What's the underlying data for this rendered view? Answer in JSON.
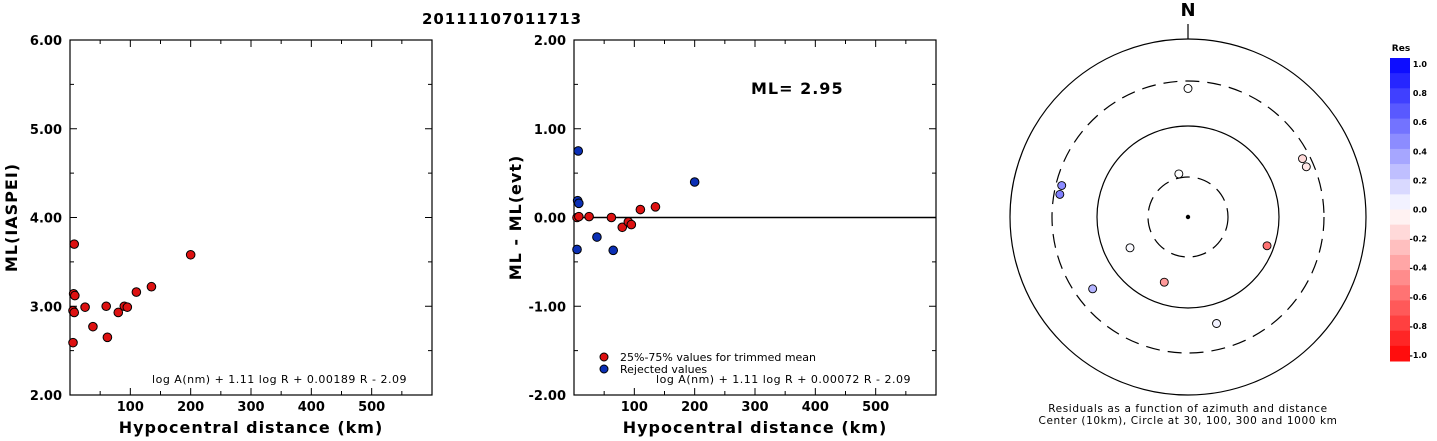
{
  "title": "20111107011713",
  "colors": {
    "accepted": "#dd1111",
    "rejected": "#0b2fb5",
    "axis": "#000000"
  },
  "chart_data": [
    {
      "type": "scatter",
      "xlabel": "Hypocentral distance (km)",
      "ylabel": "ML(IASPEI)",
      "xlim": [
        0,
        600
      ],
      "ylim": [
        2.0,
        6.0
      ],
      "xticks": [
        "100",
        "200",
        "300",
        "400",
        "500"
      ],
      "yticks": [
        "2.00",
        "3.00",
        "4.00",
        "5.00",
        "6.00"
      ],
      "formula": "log A(nm) + 1.11 log R + 0.00189 R - 2.09",
      "series": [
        {
          "color": "#dd1111",
          "points": [
            [
              7,
              3.7
            ],
            [
              6,
              3.14
            ],
            [
              8,
              3.12
            ],
            [
              5,
              2.95
            ],
            [
              7,
              2.93
            ],
            [
              5,
              2.59
            ],
            [
              25,
              2.99
            ],
            [
              38,
              2.77
            ],
            [
              60,
              3.0
            ],
            [
              62,
              2.65
            ],
            [
              80,
              2.93
            ],
            [
              90,
              3.0
            ],
            [
              95,
              2.99
            ],
            [
              110,
              3.16
            ],
            [
              135,
              3.22
            ],
            [
              200,
              3.58
            ]
          ]
        }
      ]
    },
    {
      "type": "scatter",
      "xlabel": "Hypocentral distance (km)",
      "ylabel": "ML - ML(evt)",
      "xlim": [
        0,
        600
      ],
      "ylim": [
        -2.0,
        2.0
      ],
      "xticks": [
        "100",
        "200",
        "300",
        "400",
        "500"
      ],
      "yticks": [
        "-2.00",
        "-1.00",
        "0.00",
        "1.00",
        "2.00"
      ],
      "annotation": "ML= 2.95",
      "formula": "log A(nm) + 1.11 log R + 0.00072 R - 2.09",
      "legend": {
        "accepted": "25%-75% values for trimmed mean",
        "rejected": "Rejected values"
      },
      "series": [
        {
          "color": "#dd1111",
          "points": [
            [
              5,
              0.0
            ],
            [
              8,
              0.01
            ],
            [
              25,
              0.01
            ],
            [
              62,
              0.0
            ],
            [
              80,
              -0.11
            ],
            [
              90,
              -0.05
            ],
            [
              95,
              -0.08
            ],
            [
              110,
              0.09
            ],
            [
              135,
              0.12
            ]
          ]
        },
        {
          "color": "#0b2fb5",
          "points": [
            [
              7,
              0.75
            ],
            [
              6,
              0.19
            ],
            [
              8,
              0.16
            ],
            [
              5,
              -0.36
            ],
            [
              38,
              -0.22
            ],
            [
              65,
              -0.37
            ],
            [
              200,
              0.4
            ]
          ]
        }
      ]
    },
    {
      "type": "polar",
      "north_label": "N",
      "colorbar": {
        "title": "Res",
        "ticks": [
          "1.0",
          "0.8",
          "0.6",
          "0.4",
          "0.2",
          "0.0",
          "-0.2",
          "-0.4",
          "-0.6",
          "-0.8",
          "-1.0"
        ],
        "range": [
          -1.0,
          1.0
        ]
      },
      "caption_line1": "Residuals as a function of azimuth and distance",
      "caption_line2": "Center (10km), Circle at 30, 100, 300 and 1000 km",
      "points": [
        {
          "azimuth": 0,
          "distance_km": 250,
          "residual": 0.0
        },
        {
          "azimuth": 63,
          "distance_km": 250,
          "residual": -0.15
        },
        {
          "azimuth": 67,
          "distance_km": 250,
          "residual": -0.1
        },
        {
          "azimuth": 348,
          "distance_km": 33,
          "residual": 0.0
        },
        {
          "azimuth": 242,
          "distance_km": 55,
          "residual": 0.02
        },
        {
          "azimuth": 280,
          "distance_km": 260,
          "residual": 0.5
        },
        {
          "azimuth": 284,
          "distance_km": 260,
          "residual": 0.45
        },
        {
          "azimuth": 233,
          "distance_km": 200,
          "residual": 0.3
        },
        {
          "azimuth": 165,
          "distance_km": 160,
          "residual": 0.05
        },
        {
          "azimuth": 200,
          "distance_km": 60,
          "residual": -0.4
        },
        {
          "azimuth": 110,
          "distance_km": 85,
          "residual": -0.55
        }
      ]
    }
  ]
}
